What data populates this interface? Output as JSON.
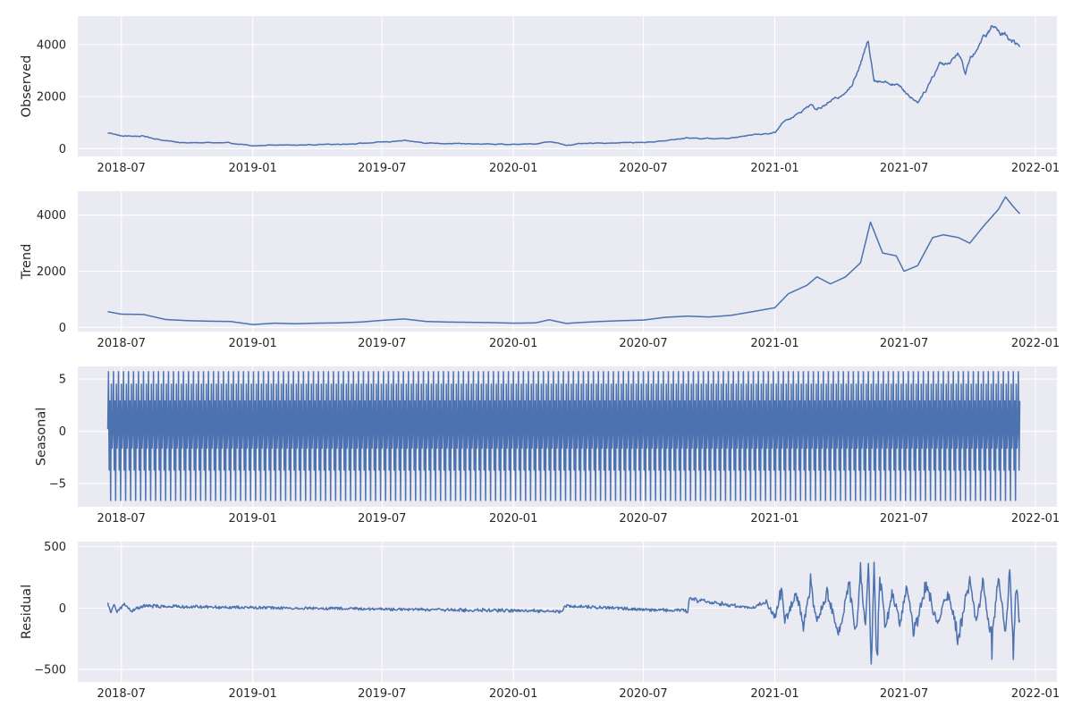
{
  "colors": {
    "line": "#4c72b0",
    "axes_background": "#eaeaf2",
    "grid": "#ffffff",
    "text": "#262626"
  },
  "chart_data": [
    {
      "type": "line",
      "ylabel": "Observed",
      "x_range": [
        "2018-05-01",
        "2022-01-31"
      ],
      "ylim": [
        -300,
        5100
      ],
      "yticks": [
        0,
        2000,
        4000
      ],
      "ytick_labels": [
        "0",
        "2000",
        "4000"
      ],
      "xticks": [
        "2018-07-01",
        "2019-01-01",
        "2019-07-01",
        "2020-01-01",
        "2020-07-01",
        "2021-01-01",
        "2021-07-01",
        "2022-01-01"
      ],
      "xtick_labels": [
        "2018-07",
        "2019-01",
        "2019-07",
        "2020-01",
        "2020-07",
        "2021-01",
        "2021-07",
        "2022-01"
      ],
      "grid": true,
      "style": "jagged",
      "series": [
        {
          "x": [
            "2018-06-12",
            "2018-06-20",
            "2018-07-01",
            "2018-08-01",
            "2018-09-01",
            "2018-10-01",
            "2018-11-01",
            "2018-12-01",
            "2019-01-01",
            "2019-02-01",
            "2019-03-01",
            "2019-04-01",
            "2019-05-01",
            "2019-06-01",
            "2019-07-01",
            "2019-08-01",
            "2019-09-01",
            "2019-10-01",
            "2019-11-01",
            "2019-12-01",
            "2020-01-01",
            "2020-02-01",
            "2020-02-20",
            "2020-03-15",
            "2020-04-01",
            "2020-05-01",
            "2020-06-01",
            "2020-07-01",
            "2020-08-01",
            "2020-09-01",
            "2020-10-01",
            "2020-11-01",
            "2020-12-01",
            "2021-01-01",
            "2021-01-15",
            "2021-02-01",
            "2021-02-20",
            "2021-03-01",
            "2021-03-20",
            "2021-04-01",
            "2021-04-20",
            "2021-05-01",
            "2021-05-12",
            "2021-05-20",
            "2021-06-01",
            "2021-06-20",
            "2021-07-01",
            "2021-07-20",
            "2021-08-01",
            "2021-08-20",
            "2021-09-01",
            "2021-09-15",
            "2021-09-25",
            "2021-10-01",
            "2021-10-15",
            "2021-11-01",
            "2021-11-10",
            "2021-11-20",
            "2021-12-01",
            "2021-12-10"
          ],
          "y": [
            600,
            580,
            480,
            480,
            300,
            220,
            230,
            210,
            100,
            150,
            130,
            160,
            170,
            200,
            250,
            300,
            220,
            200,
            180,
            170,
            160,
            180,
            280,
            130,
            180,
            210,
            230,
            240,
            300,
            420,
            380,
            400,
            550,
            600,
            1100,
            1300,
            1700,
            1500,
            1800,
            2000,
            2500,
            3200,
            4200,
            2700,
            2600,
            2500,
            2200,
            1800,
            2300,
            3300,
            3300,
            3700,
            2900,
            3500,
            4000,
            4700,
            4500,
            4400,
            4200,
            3900
          ]
        }
      ]
    },
    {
      "type": "line",
      "ylabel": "Trend",
      "x_range": [
        "2018-05-01",
        "2022-01-31"
      ],
      "ylim": [
        -150,
        4850
      ],
      "yticks": [
        0,
        2000,
        4000
      ],
      "ytick_labels": [
        "0",
        "2000",
        "4000"
      ],
      "xticks": [
        "2018-07-01",
        "2019-01-01",
        "2019-07-01",
        "2020-01-01",
        "2020-07-01",
        "2021-01-01",
        "2021-07-01",
        "2022-01-01"
      ],
      "xtick_labels": [
        "2018-07",
        "2019-01",
        "2019-07",
        "2020-01",
        "2020-07",
        "2021-01",
        "2021-07",
        "2022-01"
      ],
      "grid": true,
      "style": "smooth",
      "series": [
        {
          "x": [
            "2018-06-12",
            "2018-07-01",
            "2018-08-01",
            "2018-09-01",
            "2018-10-01",
            "2018-11-01",
            "2018-12-01",
            "2019-01-01",
            "2019-02-01",
            "2019-03-01",
            "2019-04-01",
            "2019-05-01",
            "2019-06-01",
            "2019-07-01",
            "2019-08-01",
            "2019-09-01",
            "2019-10-01",
            "2019-11-01",
            "2019-12-01",
            "2020-01-01",
            "2020-02-01",
            "2020-02-20",
            "2020-03-15",
            "2020-04-01",
            "2020-05-01",
            "2020-06-01",
            "2020-07-01",
            "2020-08-01",
            "2020-09-01",
            "2020-10-01",
            "2020-11-01",
            "2020-12-01",
            "2021-01-01",
            "2021-01-20",
            "2021-02-15",
            "2021-03-01",
            "2021-03-20",
            "2021-04-10",
            "2021-05-01",
            "2021-05-15",
            "2021-06-01",
            "2021-06-20",
            "2021-07-01",
            "2021-07-20",
            "2021-08-10",
            "2021-08-25",
            "2021-09-15",
            "2021-10-01",
            "2021-10-20",
            "2021-11-10",
            "2021-11-20",
            "2021-12-01",
            "2021-12-10"
          ],
          "y": [
            560,
            470,
            460,
            280,
            240,
            220,
            210,
            100,
            150,
            130,
            150,
            160,
            190,
            250,
            300,
            210,
            190,
            180,
            170,
            150,
            160,
            270,
            140,
            170,
            210,
            240,
            260,
            360,
            400,
            370,
            430,
            560,
            700,
            1200,
            1500,
            1800,
            1550,
            1800,
            2300,
            3750,
            2650,
            2550,
            2000,
            2200,
            3200,
            3300,
            3200,
            3000,
            3600,
            4200,
            4650,
            4300,
            4050
          ]
        }
      ]
    },
    {
      "type": "line",
      "ylabel": "Seasonal",
      "x_range": [
        "2018-05-01",
        "2022-01-31"
      ],
      "ylim": [
        -7.2,
        6.2
      ],
      "yticks": [
        -5,
        0,
        5
      ],
      "ytick_labels": [
        "−5",
        "0",
        "5"
      ],
      "xticks": [
        "2018-07-01",
        "2019-01-01",
        "2019-07-01",
        "2020-01-01",
        "2020-07-01",
        "2021-01-01",
        "2021-07-01",
        "2022-01-01"
      ],
      "xtick_labels": [
        "2018-07",
        "2019-01",
        "2019-07",
        "2020-01",
        "2020-07",
        "2021-01",
        "2021-07",
        "2022-01"
      ],
      "grid": true,
      "style": "periodic",
      "x_start": "2018-06-12",
      "x_end": "2021-12-10",
      "period_days": 7,
      "pattern": [
        0.2,
        5.7,
        -3.7,
        2.9,
        -6.6,
        4.5,
        -1.6
      ]
    },
    {
      "type": "line",
      "ylabel": "Residual",
      "x_range": [
        "2018-05-01",
        "2022-01-31"
      ],
      "ylim": [
        -600,
        540
      ],
      "yticks": [
        -500,
        0,
        500
      ],
      "ytick_labels": [
        "−500",
        "0",
        "500"
      ],
      "xticks": [
        "2018-07-01",
        "2019-01-01",
        "2019-07-01",
        "2020-01-01",
        "2020-07-01",
        "2021-01-01",
        "2021-07-01",
        "2022-01-01"
      ],
      "xtick_labels": [
        "2018-07",
        "2019-01",
        "2019-07",
        "2020-01",
        "2020-07",
        "2021-01",
        "2021-07",
        "2022-01"
      ],
      "grid": true,
      "style": "noise",
      "series": [
        {
          "x": [
            "2018-06-12",
            "2018-06-16",
            "2018-06-20",
            "2018-06-25",
            "2018-07-05",
            "2018-07-15",
            "2018-08-01",
            "2018-09-01",
            "2019-01-01",
            "2020-03-10",
            "2020-03-12",
            "2020-09-01",
            "2020-09-03",
            "2020-12-01",
            "2020-12-20",
            "2021-01-01",
            "2021-01-10",
            "2021-01-15",
            "2021-02-01",
            "2021-02-10",
            "2021-02-20",
            "2021-03-01",
            "2021-03-15",
            "2021-04-01",
            "2021-04-15",
            "2021-04-25",
            "2021-05-01",
            "2021-05-08",
            "2021-05-12",
            "2021-05-16",
            "2021-05-20",
            "2021-05-24",
            "2021-05-28",
            "2021-06-05",
            "2021-06-15",
            "2021-06-25",
            "2021-07-05",
            "2021-07-15",
            "2021-08-01",
            "2021-08-15",
            "2021-09-01",
            "2021-09-15",
            "2021-10-01",
            "2021-10-10",
            "2021-10-20",
            "2021-11-01",
            "2021-11-10",
            "2021-11-20",
            "2021-11-26",
            "2021-12-01",
            "2021-12-05",
            "2021-12-10"
          ],
          "y": [
            40,
            -40,
            30,
            -30,
            35,
            -25,
            20,
            15,
            5,
            -30,
            20,
            -30,
            80,
            0,
            60,
            -100,
            180,
            -120,
            150,
            -200,
            220,
            -150,
            150,
            -250,
            250,
            -300,
            350,
            -200,
            490,
            -560,
            420,
            -550,
            300,
            -200,
            150,
            -150,
            200,
            -250,
            250,
            -150,
            150,
            -300,
            300,
            -150,
            250,
            -350,
            300,
            -250,
            360,
            -480,
            280,
            -200
          ]
        }
      ]
    }
  ]
}
